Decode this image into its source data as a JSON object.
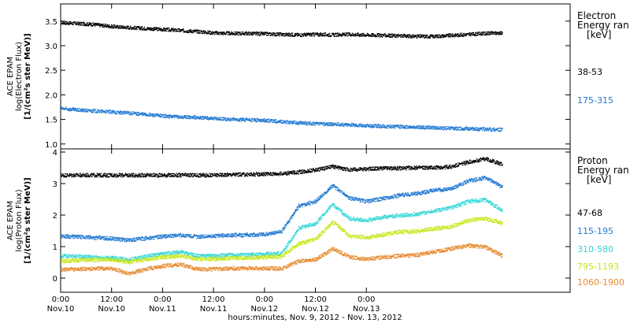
{
  "chart_data": [
    {
      "type": "scatter",
      "ylabel_lines": [
        "ACE EPAM",
        "log(Electron Flux)",
        "[1/(cm²s ster MeV)]"
      ],
      "ylim": [
        0.9,
        3.85
      ],
      "yticks": [
        1.0,
        1.5,
        2.0,
        2.5,
        3.0,
        3.5
      ],
      "ytick_labels": [
        "1.0",
        "1.5",
        "2.0",
        "2.5",
        "3.0",
        "3.5"
      ],
      "legend_title": [
        "Electron",
        "Energy ran",
        "[keV]"
      ],
      "series": [
        {
          "name": "38-53",
          "color": "#000000",
          "x": [
            0,
            4,
            8,
            12,
            16,
            20,
            24,
            28,
            32,
            36,
            40,
            44,
            48,
            52,
            56,
            60,
            64,
            68,
            72,
            76,
            80,
            84,
            88,
            92,
            96,
            100,
            104
          ],
          "y": [
            3.48,
            3.46,
            3.44,
            3.4,
            3.38,
            3.36,
            3.34,
            3.32,
            3.3,
            3.27,
            3.26,
            3.26,
            3.25,
            3.24,
            3.23,
            3.24,
            3.23,
            3.24,
            3.23,
            3.22,
            3.21,
            3.2,
            3.2,
            3.22,
            3.24,
            3.26,
            3.27
          ]
        },
        {
          "name": "175-315",
          "color": "#1e78d2",
          "x": [
            0,
            4,
            8,
            12,
            16,
            20,
            24,
            28,
            32,
            36,
            40,
            44,
            48,
            52,
            56,
            60,
            64,
            68,
            72,
            76,
            80,
            84,
            88,
            92,
            96,
            100,
            104
          ],
          "y": [
            1.73,
            1.7,
            1.68,
            1.66,
            1.64,
            1.61,
            1.58,
            1.56,
            1.55,
            1.53,
            1.51,
            1.5,
            1.49,
            1.46,
            1.44,
            1.42,
            1.41,
            1.4,
            1.38,
            1.37,
            1.36,
            1.35,
            1.34,
            1.33,
            1.32,
            1.31,
            1.3
          ]
        }
      ]
    },
    {
      "type": "scatter",
      "ylabel_lines": [
        "ACE EPAM",
        "log(Proton Flux)",
        "[1/(cm²s ster MeV)]"
      ],
      "ylim": [
        -0.45,
        4.1
      ],
      "yticks": [
        0,
        1,
        2,
        3,
        4
      ],
      "ytick_labels": [
        "0",
        "1",
        "2",
        "3",
        "4"
      ],
      "legend_title": [
        "Proton",
        "Energy ran",
        "[keV]"
      ],
      "series": [
        {
          "name": "47-68",
          "color": "#000000",
          "x": [
            0,
            4,
            8,
            12,
            16,
            20,
            24,
            28,
            32,
            36,
            40,
            44,
            48,
            52,
            56,
            60,
            64,
            68,
            72,
            76,
            80,
            84,
            88,
            92,
            96,
            100,
            104
          ],
          "y": [
            3.28,
            3.28,
            3.28,
            3.28,
            3.28,
            3.28,
            3.28,
            3.28,
            3.28,
            3.28,
            3.3,
            3.3,
            3.32,
            3.33,
            3.38,
            3.45,
            3.55,
            3.45,
            3.48,
            3.5,
            3.5,
            3.52,
            3.52,
            3.55,
            3.7,
            3.8,
            3.62
          ]
        },
        {
          "name": "115-195",
          "color": "#1e78d2",
          "x": [
            0,
            4,
            8,
            12,
            16,
            20,
            24,
            28,
            32,
            36,
            40,
            44,
            48,
            52,
            56,
            60,
            64,
            68,
            72,
            76,
            80,
            84,
            88,
            92,
            96,
            100,
            104
          ],
          "y": [
            1.35,
            1.32,
            1.3,
            1.27,
            1.22,
            1.28,
            1.33,
            1.38,
            1.33,
            1.35,
            1.38,
            1.38,
            1.4,
            1.5,
            2.3,
            2.45,
            2.95,
            2.55,
            2.45,
            2.55,
            2.65,
            2.7,
            2.8,
            2.85,
            3.1,
            3.2,
            2.9
          ]
        },
        {
          "name": "310-580",
          "color": "#33d6d6",
          "x": [
            0,
            4,
            8,
            12,
            16,
            20,
            24,
            28,
            32,
            36,
            40,
            44,
            48,
            52,
            56,
            60,
            64,
            68,
            72,
            76,
            80,
            84,
            88,
            92,
            96,
            100,
            104
          ],
          "y": [
            0.72,
            0.7,
            0.68,
            0.66,
            0.6,
            0.7,
            0.78,
            0.85,
            0.72,
            0.72,
            0.75,
            0.75,
            0.78,
            0.8,
            1.6,
            1.75,
            2.35,
            1.9,
            1.85,
            1.95,
            2.0,
            2.05,
            2.15,
            2.25,
            2.45,
            2.5,
            2.15
          ]
        },
        {
          "name": "795-1193",
          "color": "#c8e617",
          "x": [
            0,
            4,
            8,
            12,
            16,
            20,
            24,
            28,
            32,
            36,
            40,
            44,
            48,
            52,
            56,
            60,
            64,
            68,
            72,
            76,
            80,
            84,
            88,
            92,
            96,
            100,
            104
          ],
          "y": [
            0.55,
            0.58,
            0.6,
            0.6,
            0.52,
            0.62,
            0.68,
            0.72,
            0.62,
            0.62,
            0.65,
            0.66,
            0.68,
            0.7,
            1.1,
            1.25,
            1.8,
            1.35,
            1.3,
            1.4,
            1.48,
            1.5,
            1.58,
            1.65,
            1.85,
            1.9,
            1.75
          ]
        },
        {
          "name": "1060-1900",
          "color": "#e68a2e",
          "x": [
            0,
            4,
            8,
            12,
            16,
            20,
            24,
            28,
            32,
            36,
            40,
            44,
            48,
            52,
            56,
            60,
            64,
            68,
            72,
            76,
            80,
            84,
            88,
            92,
            96,
            100,
            104
          ],
          "y": [
            0.28,
            0.3,
            0.32,
            0.32,
            0.15,
            0.3,
            0.4,
            0.45,
            0.3,
            0.3,
            0.32,
            0.33,
            0.32,
            0.32,
            0.55,
            0.6,
            0.95,
            0.68,
            0.62,
            0.68,
            0.72,
            0.75,
            0.85,
            0.95,
            1.05,
            1.0,
            0.72
          ]
        }
      ]
    }
  ],
  "xaxis": {
    "xlim": [
      0,
      120
    ],
    "ticks": [
      {
        "x": 0,
        "time": "0:00",
        "date": "Nov.10"
      },
      {
        "x": 12,
        "time": "12:00",
        "date": "Nov.10"
      },
      {
        "x": 24,
        "time": "0:00",
        "date": "Nov.11"
      },
      {
        "x": 36,
        "time": "12:00",
        "date": "Nov.11"
      },
      {
        "x": 48,
        "time": "0:00",
        "date": "Nov.12"
      },
      {
        "x": 60,
        "time": "12:00",
        "date": "Nov.12"
      },
      {
        "x": 72,
        "time": "0:00",
        "date": "Nov.13"
      }
    ],
    "label": "hours:minutes, Nov. 9, 2012 - Nov. 13, 2012"
  }
}
